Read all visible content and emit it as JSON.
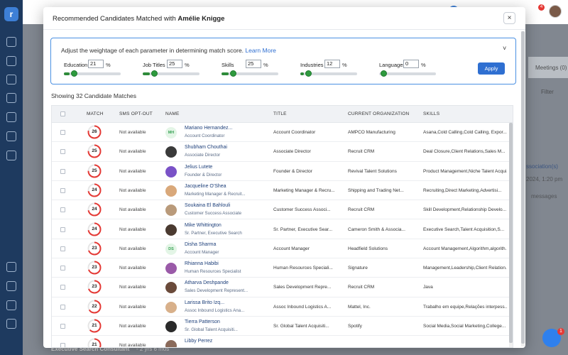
{
  "modal": {
    "title_prefix": "Recommended Candidates Matched with",
    "title_name": "Amélie Knigge",
    "close_label": "×"
  },
  "weights": {
    "note": "Adjust the weightage of each parameter in determining match score.",
    "learn_more": "Learn More",
    "apply_label": "Apply",
    "params": [
      {
        "label": "Education",
        "value": "21",
        "pct": "%",
        "level": 0.21
      },
      {
        "label": "Job Titles",
        "value": "25",
        "pct": "%",
        "level": 0.25
      },
      {
        "label": "Skills",
        "value": "25",
        "pct": "%",
        "level": 0.25
      },
      {
        "label": "Industries",
        "value": "12",
        "pct": "%",
        "level": 0.12
      },
      {
        "label": "Languages",
        "value": "0",
        "pct": "%",
        "level": 0
      }
    ]
  },
  "showing": "Showing 32 Candidate Matches",
  "table": {
    "headers": {
      "match": "MATCH",
      "sms": "SMS OPT-OUT",
      "name": "NAME",
      "title": "TITLE",
      "org": "CURRENT ORGANIZATION",
      "skills": "SKILLS"
    },
    "rows": [
      {
        "score": "26",
        "level": 0.26,
        "sms": "Not available",
        "initials": "MH",
        "avatar_bg": "#e3f5e6",
        "avatar_fg": "#3aa356",
        "name": "Mariano Hernandez...",
        "sub": "Account Coordinator",
        "title": "Account Coordinator",
        "org": "AMPCO Manufacturing",
        "skills": "Asana,Cold Calling,Cold Calling, Expor..."
      },
      {
        "score": "25",
        "level": 0.25,
        "sms": "Not available",
        "initials": "",
        "avatar_bg": "#3a3a3a",
        "avatar_fg": "#fff",
        "name": "Shubham Chouthai",
        "sub": "Associate Director",
        "title": "Associate Director",
        "org": "Recruit CRM",
        "skills": "Deal Closure,Client Relations,Sales M..."
      },
      {
        "score": "25",
        "level": 0.25,
        "sms": "Not available",
        "initials": "",
        "avatar_bg": "#7a52c7",
        "avatar_fg": "#fff",
        "name": "Jelius Lutete",
        "sub": "Founder & Director",
        "title": "Founder & Director",
        "org": "Revival Talent Solutions",
        "skills": "Product Management,Niche Talent Acqui..."
      },
      {
        "score": "24",
        "level": 0.24,
        "sms": "Not available",
        "initials": "",
        "avatar_bg": "#d9a87a",
        "avatar_fg": "#fff",
        "name": "Jacqueline O'Shea",
        "sub": "Marketing Manager & Recruit...",
        "title": "Marketing Manager & Recru...",
        "org": "Shipping and Trading Net...",
        "skills": "Recruiting,Direct Marketing,Advertisi..."
      },
      {
        "score": "24",
        "level": 0.24,
        "sms": "Not available",
        "initials": "",
        "avatar_bg": "#b99a7a",
        "avatar_fg": "#fff",
        "name": "Soukaina El Bahlouli",
        "sub": "Customer Success Associate",
        "title": "Customer Success Associ...",
        "org": "Recruit CRM",
        "skills": "Skill Development,Relationship Develo..."
      },
      {
        "score": "24",
        "level": 0.24,
        "sms": "Not available",
        "initials": "",
        "avatar_bg": "#4a3a30",
        "avatar_fg": "#fff",
        "name": "Mike Whittington",
        "sub": "Sr. Partner, Executive Search",
        "title": "Sr. Partner, Executive Sear...",
        "org": "Cameron Smith & Associa...",
        "skills": "Executive Search,Talent Acquisition,S..."
      },
      {
        "score": "23",
        "level": 0.23,
        "sms": "Not available",
        "initials": "DS",
        "avatar_bg": "#e3f5e6",
        "avatar_fg": "#3aa356",
        "name": "Disha Sharma",
        "sub": "Account Manager",
        "title": "Account Manager",
        "org": "Headfield Solutions",
        "skills": "Account Management,Algorithm,algorith..."
      },
      {
        "score": "23",
        "level": 0.23,
        "sms": "Not available",
        "initials": "",
        "avatar_bg": "#9a5aa8",
        "avatar_fg": "#fff",
        "name": "Rhianna Habibi",
        "sub": "Human Resources Specialist",
        "title": "Human Resources Speciali...",
        "org": "Signature",
        "skills": "Management,Leadership,Client Relation..."
      },
      {
        "score": "23",
        "level": 0.23,
        "sms": "Not available",
        "initials": "",
        "avatar_bg": "#6a4a3a",
        "avatar_fg": "#fff",
        "name": "Atharva Deshpande",
        "sub": "Sales Development Represent...",
        "title": "Sales Development Repre...",
        "org": "Recruit CRM",
        "skills": "Java"
      },
      {
        "score": "22",
        "level": 0.22,
        "sms": "Not available",
        "initials": "",
        "avatar_bg": "#d8b08a",
        "avatar_fg": "#fff",
        "name": "Larissa Brito Izq...",
        "sub": "Assoc Inbound Logistics Ana...",
        "title": "Assoc Inbound Logistics A...",
        "org": "Mattel, Inc.",
        "skills": "Trabalho em equipe,Relações interpess..."
      },
      {
        "score": "21",
        "level": 0.21,
        "sms": "Not available",
        "initials": "",
        "avatar_bg": "#2a2a2a",
        "avatar_fg": "#fff",
        "name": "Tierra Patterson",
        "sub": "Sr. Global Talent Acquisiti...",
        "title": "Sr. Global Talent Acquisiti...",
        "org": "Spotify",
        "skills": "Social Media,Social Marketing,College..."
      },
      {
        "score": "21",
        "level": 0.21,
        "sms": "Not available",
        "initials": "",
        "avatar_bg": "#8a6a5a",
        "avatar_fg": "#fff",
        "name": "Libby Perrez",
        "sub": "",
        "title": "",
        "org": "",
        "skills": ""
      }
    ]
  },
  "background": {
    "job_card": "Executive Search Consultant",
    "job_meta": "- 2 yrs 6 mos",
    "meetings": "Meetings (0)",
    "filter": "Filter",
    "association": "ssociation(s)",
    "date": "2024, 1:20 pm",
    "messages": "messages"
  },
  "colors": {
    "ring_red": "#e53935",
    "ring_track": "#e6e6e6",
    "slider_green": "#2e8b3a",
    "brand_blue": "#2f6fd1"
  }
}
